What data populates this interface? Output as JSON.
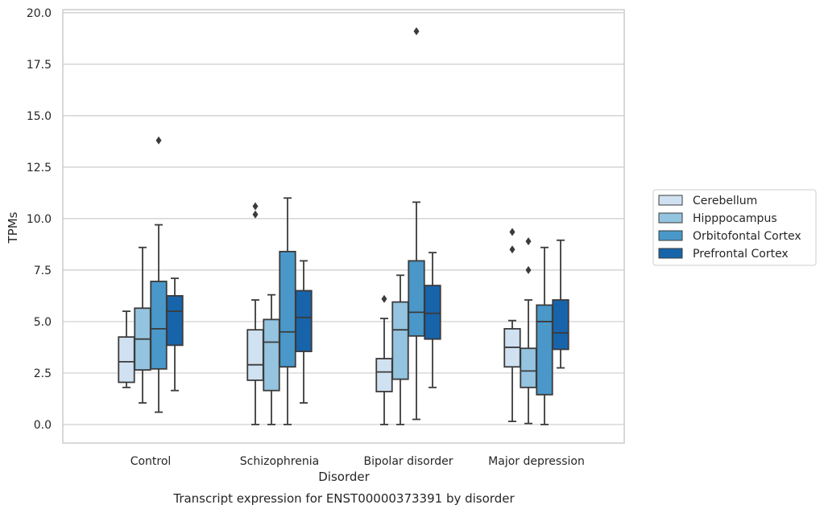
{
  "caption": "Transcript expression for ENST00000373391 by disorder",
  "colors": {
    "Cerebellum": "#d0e1f2",
    "Hipppocampus": "#94c4df",
    "Orbitofontal Cortex": "#4a98c9",
    "Prefrontal Cortex": "#1764ab",
    "grid": "#cccccc",
    "box_line": "#3b3b3b"
  },
  "chart_data": {
    "type": "box",
    "xlabel": "Disorder",
    "ylabel": "TPMs",
    "ylim": [
      -0.9,
      20.15
    ],
    "yticks": [
      0.0,
      2.5,
      5.0,
      7.5,
      10.0,
      12.5,
      15.0,
      17.5,
      20.0
    ],
    "ytick_labels": [
      "0.0",
      "2.5",
      "5.0",
      "7.5",
      "10.0",
      "12.5",
      "15.0",
      "17.5",
      "20.0"
    ],
    "grid": "horizontal",
    "legend": {
      "placement": "right",
      "entries": [
        "Cerebellum",
        "Hipppocampus",
        "Orbitofontal Cortex",
        "Prefrontal Cortex"
      ]
    },
    "categories": [
      "Control",
      "Schizophrenia",
      "Bipolar disorder",
      "Major depression"
    ],
    "series": [
      {
        "name": "Cerebellum",
        "boxes": [
          {
            "whisker_low": 1.8,
            "q1": 2.05,
            "median": 3.05,
            "q3": 4.25,
            "whisker_high": 5.5,
            "outliers": []
          },
          {
            "whisker_low": 0.0,
            "q1": 2.15,
            "median": 2.9,
            "q3": 4.6,
            "whisker_high": 6.05,
            "outliers": [
              10.2,
              10.6
            ]
          },
          {
            "whisker_low": 0.0,
            "q1": 1.6,
            "median": 2.55,
            "q3": 3.2,
            "whisker_high": 5.15,
            "outliers": [
              6.1
            ]
          },
          {
            "whisker_low": 0.15,
            "q1": 2.8,
            "median": 3.75,
            "q3": 4.65,
            "whisker_high": 5.05,
            "outliers": [
              8.5,
              9.35
            ]
          }
        ]
      },
      {
        "name": "Hipppocampus",
        "boxes": [
          {
            "whisker_low": 1.05,
            "q1": 2.65,
            "median": 4.15,
            "q3": 5.65,
            "whisker_high": 8.6,
            "outliers": []
          },
          {
            "whisker_low": 0.0,
            "q1": 1.65,
            "median": 4.0,
            "q3": 5.1,
            "whisker_high": 6.3,
            "outliers": []
          },
          {
            "whisker_low": 0.0,
            "q1": 2.2,
            "median": 4.6,
            "q3": 5.95,
            "whisker_high": 7.25,
            "outliers": []
          },
          {
            "whisker_low": 0.05,
            "q1": 1.8,
            "median": 2.6,
            "q3": 3.7,
            "whisker_high": 6.05,
            "outliers": [
              7.5,
              8.9
            ]
          }
        ]
      },
      {
        "name": "Orbitofontal Cortex",
        "boxes": [
          {
            "whisker_low": 0.6,
            "q1": 2.7,
            "median": 4.65,
            "q3": 6.95,
            "whisker_high": 9.7,
            "outliers": [
              13.8
            ]
          },
          {
            "whisker_low": 0.0,
            "q1": 2.8,
            "median": 4.5,
            "q3": 8.4,
            "whisker_high": 11.0,
            "outliers": []
          },
          {
            "whisker_low": 0.25,
            "q1": 4.3,
            "median": 5.45,
            "q3": 7.95,
            "whisker_high": 10.8,
            "outliers": [
              19.1
            ]
          },
          {
            "whisker_low": 0.0,
            "q1": 1.45,
            "median": 5.0,
            "q3": 5.8,
            "whisker_high": 8.6,
            "outliers": []
          }
        ]
      },
      {
        "name": "Prefrontal Cortex",
        "boxes": [
          {
            "whisker_low": 1.65,
            "q1": 3.85,
            "median": 5.5,
            "q3": 6.25,
            "whisker_high": 7.1,
            "outliers": []
          },
          {
            "whisker_low": 1.05,
            "q1": 3.55,
            "median": 5.2,
            "q3": 6.5,
            "whisker_high": 7.95,
            "outliers": []
          },
          {
            "whisker_low": 1.8,
            "q1": 4.15,
            "median": 5.4,
            "q3": 6.75,
            "whisker_high": 8.35,
            "outliers": []
          },
          {
            "whisker_low": 2.75,
            "q1": 3.65,
            "median": 4.45,
            "q3": 6.05,
            "whisker_high": 8.95,
            "outliers": []
          }
        ]
      }
    ]
  }
}
